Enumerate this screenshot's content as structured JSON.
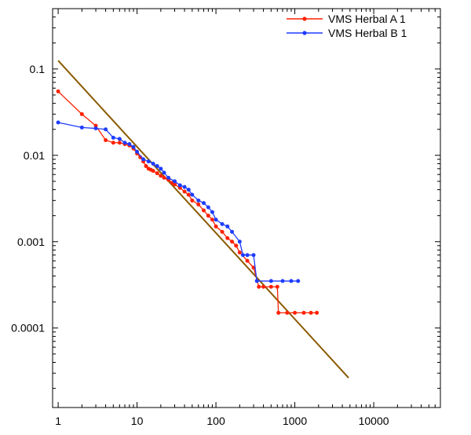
{
  "chart_data": {
    "type": "line",
    "title": "",
    "xlabel": "",
    "ylabel": "",
    "x_scale": "log",
    "y_scale": "log",
    "xlim": [
      0.85,
      70000
    ],
    "ylim": [
      1.2e-05,
      0.5
    ],
    "x_ticks": [
      {
        "value": 1,
        "label": "1"
      },
      {
        "value": 10,
        "label": "10"
      },
      {
        "value": 100,
        "label": "100"
      },
      {
        "value": 1000,
        "label": "1000"
      },
      {
        "value": 10000,
        "label": "10000"
      }
    ],
    "y_ticks": [
      {
        "value": 0.1,
        "label": "0.1"
      },
      {
        "value": 0.01,
        "label": "0.01"
      },
      {
        "value": 0.001,
        "label": "0.001"
      },
      {
        "value": 0.0001,
        "label": "0.0001"
      }
    ],
    "grid": false,
    "legend_position": "top-right",
    "series": [
      {
        "name": "VMS Herbal A 1",
        "color": "#ff2000",
        "points": [
          [
            1,
            0.055
          ],
          [
            2,
            0.03
          ],
          [
            3,
            0.022
          ],
          [
            4,
            0.015
          ],
          [
            5,
            0.014
          ],
          [
            6,
            0.014
          ],
          [
            7,
            0.0135
          ],
          [
            8,
            0.013
          ],
          [
            9,
            0.012
          ],
          [
            10,
            0.0105
          ],
          [
            11,
            0.0095
          ],
          [
            12,
            0.0085
          ],
          [
            13,
            0.0075
          ],
          [
            14,
            0.007
          ],
          [
            15,
            0.0068
          ],
          [
            16,
            0.0066
          ],
          [
            18,
            0.0062
          ],
          [
            20,
            0.0058
          ],
          [
            22,
            0.0055
          ],
          [
            25,
            0.0052
          ],
          [
            28,
            0.0048
          ],
          [
            30,
            0.0046
          ],
          [
            35,
            0.0042
          ],
          [
            40,
            0.0038
          ],
          [
            45,
            0.0035
          ],
          [
            50,
            0.003
          ],
          [
            60,
            0.0027
          ],
          [
            70,
            0.0023
          ],
          [
            80,
            0.002
          ],
          [
            90,
            0.0018
          ],
          [
            100,
            0.0015
          ],
          [
            120,
            0.0013
          ],
          [
            140,
            0.0011
          ],
          [
            160,
            0.001
          ],
          [
            180,
            0.0009
          ],
          [
            200,
            0.00075
          ],
          [
            250,
            0.0006
          ],
          [
            300,
            0.0005
          ],
          [
            350,
            0.0003
          ],
          [
            400,
            0.0003
          ],
          [
            500,
            0.0003
          ],
          [
            600,
            0.0003
          ],
          [
            620,
            0.00015
          ],
          [
            800,
            0.00015
          ],
          [
            1000,
            0.00015
          ],
          [
            1300,
            0.00015
          ],
          [
            1600,
            0.00015
          ],
          [
            1900,
            0.00015
          ]
        ]
      },
      {
        "name": "VMS Herbal B 1",
        "color": "#1e3cff",
        "points": [
          [
            1,
            0.024
          ],
          [
            2,
            0.021
          ],
          [
            3,
            0.0205
          ],
          [
            4,
            0.02
          ],
          [
            5,
            0.016
          ],
          [
            6,
            0.0155
          ],
          [
            7,
            0.014
          ],
          [
            8,
            0.0135
          ],
          [
            9,
            0.0125
          ],
          [
            10,
            0.011
          ],
          [
            12,
            0.009
          ],
          [
            14,
            0.0085
          ],
          [
            16,
            0.008
          ],
          [
            18,
            0.0075
          ],
          [
            20,
            0.007
          ],
          [
            22,
            0.0063
          ],
          [
            25,
            0.0055
          ],
          [
            30,
            0.005
          ],
          [
            35,
            0.0045
          ],
          [
            40,
            0.0043
          ],
          [
            45,
            0.004
          ],
          [
            50,
            0.0035
          ],
          [
            60,
            0.003
          ],
          [
            70,
            0.0028
          ],
          [
            80,
            0.0025
          ],
          [
            90,
            0.0022
          ],
          [
            100,
            0.0018
          ],
          [
            120,
            0.0016
          ],
          [
            140,
            0.0015
          ],
          [
            160,
            0.0013
          ],
          [
            200,
            0.001
          ],
          [
            220,
            0.0007
          ],
          [
            250,
            0.0007
          ],
          [
            300,
            0.0007
          ],
          [
            330,
            0.00035
          ],
          [
            500,
            0.00035
          ],
          [
            700,
            0.00035
          ],
          [
            900,
            0.00035
          ],
          [
            1100,
            0.00035
          ]
        ]
      },
      {
        "name": "",
        "color": "#8b5a00",
        "points": [
          [
            1,
            0.125
          ],
          [
            4800,
            2.65e-05
          ]
        ]
      }
    ]
  }
}
